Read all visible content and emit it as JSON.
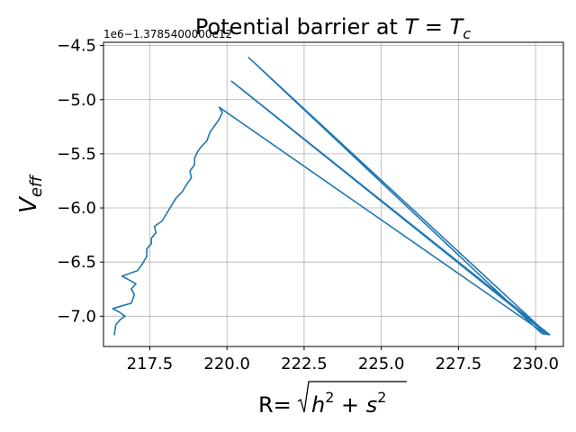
{
  "chart_data": {
    "type": "line",
    "title": "Potential barrier at T = Tc",
    "title_parts": {
      "prefix": "Potential barrier at ",
      "var1": "T",
      "eq": " = ",
      "var2": "T",
      "sub": "c"
    },
    "xlabel": "R=√(h²+s²)",
    "xlabel_parts": {
      "prefix": "R=",
      "h": "h",
      "plus": " + ",
      "s": "s",
      "exp": "2"
    },
    "ylabel": "V_eff",
    "ylabel_parts": {
      "main": "V",
      "sub": "eff"
    },
    "y_offset_text": "1e6−1.3785400000e12",
    "xlim": [
      216.0,
      230.9
    ],
    "ylim": [
      -7.28,
      -4.47
    ],
    "x_ticks": [
      217.5,
      220.0,
      222.5,
      225.0,
      227.5,
      230.0
    ],
    "x_tick_labels": [
      "217.5",
      "220.0",
      "222.5",
      "225.0",
      "227.5",
      "230.0"
    ],
    "y_ticks": [
      -7.0,
      -6.5,
      -6.0,
      -5.5,
      -5.0,
      -4.5
    ],
    "y_tick_labels": [
      "−7.0",
      "−6.5",
      "−6.0",
      "−5.5",
      "−5.0",
      "−4.5"
    ],
    "grid": true,
    "color": "#1f77b4",
    "series": [
      {
        "points": [
          [
            216.35,
            -7.17
          ],
          [
            216.4,
            -7.08
          ],
          [
            216.55,
            -7.03
          ],
          [
            216.7,
            -7.0
          ],
          [
            216.5,
            -6.96
          ],
          [
            216.3,
            -6.93
          ],
          [
            216.65,
            -6.9
          ],
          [
            216.9,
            -6.88
          ],
          [
            217.0,
            -6.8
          ],
          [
            216.9,
            -6.75
          ],
          [
            217.05,
            -6.7
          ],
          [
            216.6,
            -6.63
          ],
          [
            217.1,
            -6.58
          ],
          [
            217.25,
            -6.52
          ],
          [
            217.4,
            -6.45
          ],
          [
            217.4,
            -6.38
          ],
          [
            217.55,
            -6.33
          ],
          [
            217.55,
            -6.28
          ],
          [
            217.7,
            -6.23
          ],
          [
            217.65,
            -6.17
          ],
          [
            217.9,
            -6.12
          ],
          [
            218.05,
            -6.05
          ],
          [
            218.2,
            -5.98
          ],
          [
            218.35,
            -5.91
          ],
          [
            218.55,
            -5.85
          ],
          [
            218.7,
            -5.78
          ],
          [
            218.85,
            -5.72
          ],
          [
            218.8,
            -5.66
          ],
          [
            218.95,
            -5.6
          ],
          [
            218.95,
            -5.54
          ],
          [
            219.05,
            -5.48
          ],
          [
            219.15,
            -5.44
          ],
          [
            219.35,
            -5.38
          ],
          [
            219.45,
            -5.3
          ],
          [
            219.6,
            -5.24
          ],
          [
            219.75,
            -5.18
          ],
          [
            219.85,
            -5.12
          ],
          [
            219.75,
            -5.07
          ],
          [
            230.3,
            -7.16
          ],
          [
            230.45,
            -7.17
          ],
          [
            220.2,
            -4.84
          ],
          [
            230.35,
            -7.16
          ],
          [
            220.15,
            -4.83
          ],
          [
            230.4,
            -7.17
          ],
          [
            220.7,
            -4.61
          ],
          [
            230.2,
            -7.16
          ],
          [
            230.45,
            -7.17
          ]
        ]
      }
    ]
  }
}
